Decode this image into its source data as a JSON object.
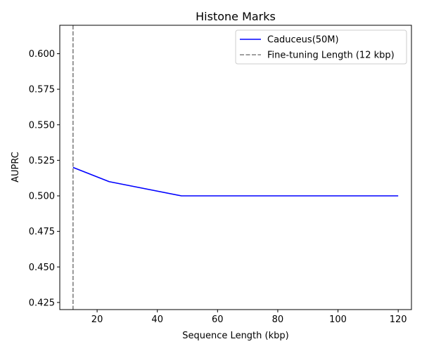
{
  "chart_data": {
    "type": "line",
    "title": "Histone Marks",
    "xlabel": "Sequence Length (kbp)",
    "ylabel": "AUPRC",
    "xlim": [
      7.6,
      124.4
    ],
    "ylim": [
      0.42,
      0.62
    ],
    "xticks": [
      20,
      40,
      60,
      80,
      100,
      120
    ],
    "yticks": [
      0.425,
      0.45,
      0.475,
      0.5,
      0.525,
      0.55,
      0.575,
      0.6
    ],
    "xtick_labels": [
      "20",
      "40",
      "60",
      "80",
      "100",
      "120"
    ],
    "ytick_labels": [
      "0.425",
      "0.450",
      "0.475",
      "0.500",
      "0.525",
      "0.550",
      "0.575",
      "0.600"
    ],
    "grid": false,
    "legend_position": "top-right",
    "series": [
      {
        "name": "Caduceus(50M)",
        "color": "#0000ff",
        "x": [
          12,
          24,
          48,
          120
        ],
        "y": [
          0.52,
          0.51,
          0.5,
          0.5
        ]
      }
    ],
    "reference_lines": [
      {
        "name": "Fine-tuning Length (12 kbp)",
        "orientation": "vertical",
        "x": 12,
        "color": "#808080",
        "style": "dashed"
      }
    ]
  }
}
